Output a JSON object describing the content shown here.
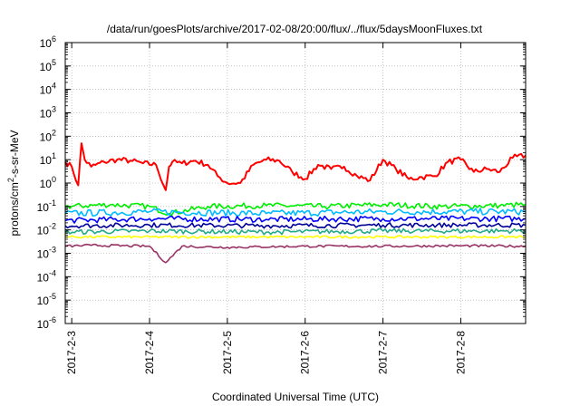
{
  "chart_data": {
    "type": "line",
    "title": "/data/run/goesPlots/archive/2017-02-08/20:00/flux/../flux/5daysMoonFluxes.txt",
    "xlabel": "Coordinated Universal Time (UTC)",
    "ylabel_parts": [
      "protons/cm",
      "2",
      "-s-sr-MeV"
    ],
    "x_ticks": [
      "2017-2-3",
      "2017-2-4",
      "2017-2-5",
      "2017-2-6",
      "2017-2-7",
      "2017-2-8"
    ],
    "x_range": [
      "2017-02-02 22:00",
      "2017-02-08 20:00"
    ],
    "y_scale": "log",
    "ylim": [
      1e-06,
      1000000.0
    ],
    "y_ticks": [
      {
        "base": "10",
        "exp": "-6"
      },
      {
        "base": "10",
        "exp": "-5"
      },
      {
        "base": "10",
        "exp": "-4"
      },
      {
        "base": "10",
        "exp": "-3"
      },
      {
        "base": "10",
        "exp": "-2"
      },
      {
        "base": "10",
        "exp": "-1"
      },
      {
        "base": "10",
        "exp": "0"
      },
      {
        "base": "10",
        "exp": "1"
      },
      {
        "base": "10",
        "exp": "2"
      },
      {
        "base": "10",
        "exp": "3"
      },
      {
        "base": "10",
        "exp": "4"
      },
      {
        "base": "10",
        "exp": "5"
      },
      {
        "base": "10",
        "exp": "6"
      }
    ],
    "grid": true,
    "series": [
      {
        "color": "#ff0000",
        "x": [
          "2017-02-02 22:00",
          "2017-02-03 00:00",
          "2017-02-03 02:00",
          "2017-02-03 03:00",
          "2017-02-03 04:00",
          "2017-02-03 06:00",
          "2017-02-03 10:00",
          "2017-02-03 14:00",
          "2017-02-03 18:00",
          "2017-02-03 22:00",
          "2017-02-04 02:00",
          "2017-02-04 05:00",
          "2017-02-04 06:00",
          "2017-02-04 07:00",
          "2017-02-04 10:00",
          "2017-02-04 14:00",
          "2017-02-04 18:00",
          "2017-02-04 21:00",
          "2017-02-05 00:00",
          "2017-02-05 04:00",
          "2017-02-05 08:00",
          "2017-02-05 12:00",
          "2017-02-05 16:00",
          "2017-02-05 20:00",
          "2017-02-06 00:00",
          "2017-02-06 04:00",
          "2017-02-06 08:00",
          "2017-02-06 12:00",
          "2017-02-06 16:00",
          "2017-02-06 20:00",
          "2017-02-07 00:00",
          "2017-02-07 04:00",
          "2017-02-07 08:00",
          "2017-02-07 12:00",
          "2017-02-07 16:00",
          "2017-02-07 20:00",
          "2017-02-08 00:00",
          "2017-02-08 04:00",
          "2017-02-08 08:00",
          "2017-02-08 12:00",
          "2017-02-08 16:00",
          "2017-02-08 20:00"
        ],
        "y": [
          8,
          5,
          0.8,
          50,
          10,
          5,
          8,
          10,
          9,
          7,
          6,
          0.5,
          5,
          8,
          7,
          9,
          6,
          2,
          1,
          1,
          6,
          10,
          9,
          3,
          1.5,
          6,
          4,
          5,
          2,
          1.3,
          10,
          4,
          1.5,
          1.8,
          2,
          8,
          10,
          3,
          4,
          3,
          12,
          15
        ]
      },
      {
        "color": "#00ee00",
        "x": [
          "2017-02-02 22:00",
          "2017-02-03 12:00",
          "2017-02-04 00:00",
          "2017-02-04 06:00",
          "2017-02-04 18:00",
          "2017-02-05 12:00",
          "2017-02-06 06:00",
          "2017-02-07 00:00",
          "2017-02-07 18:00",
          "2017-02-08 12:00",
          "2017-02-08 20:00"
        ],
        "y": [
          0.1,
          0.12,
          0.1,
          0.05,
          0.1,
          0.11,
          0.1,
          0.12,
          0.1,
          0.11,
          0.12
        ]
      },
      {
        "color": "#00bbff",
        "x": [
          "2017-02-02 22:00",
          "2017-02-04 00:00",
          "2017-02-05 12:00",
          "2017-02-07 00:00",
          "2017-02-08 20:00"
        ],
        "y": [
          0.05,
          0.06,
          0.05,
          0.06,
          0.06
        ]
      },
      {
        "color": "#0000ff",
        "x": [
          "2017-02-02 22:00",
          "2017-02-04 00:00",
          "2017-02-05 12:00",
          "2017-02-07 00:00",
          "2017-02-08 20:00"
        ],
        "y": [
          0.025,
          0.03,
          0.028,
          0.03,
          0.03
        ]
      },
      {
        "color": "#000099",
        "x": [
          "2017-02-02 22:00",
          "2017-02-04 00:00",
          "2017-02-05 12:00",
          "2017-02-07 00:00",
          "2017-02-08 20:00"
        ],
        "y": [
          0.015,
          0.016,
          0.015,
          0.016,
          0.016
        ]
      },
      {
        "color": "#22aa88",
        "x": [
          "2017-02-02 22:00",
          "2017-02-04 00:00",
          "2017-02-05 12:00",
          "2017-02-07 00:00",
          "2017-02-08 20:00"
        ],
        "y": [
          0.008,
          0.009,
          0.008,
          0.009,
          0.009
        ]
      },
      {
        "color": "#ffff00",
        "x": [
          "2017-02-02 22:00",
          "2017-02-04 00:00",
          "2017-02-05 12:00",
          "2017-02-07 00:00",
          "2017-02-08 20:00"
        ],
        "y": [
          0.005,
          0.005,
          0.005,
          0.005,
          0.005
        ]
      },
      {
        "color": "#993366",
        "x": [
          "2017-02-02 22:00",
          "2017-02-03 06:00",
          "2017-02-04 00:00",
          "2017-02-04 05:00",
          "2017-02-04 10:00",
          "2017-02-05 00:00",
          "2017-02-06 00:00",
          "2017-02-07 00:00",
          "2017-02-08 00:00",
          "2017-02-08 20:00"
        ],
        "y": [
          0.002,
          0.0022,
          0.002,
          0.0004,
          0.002,
          0.0018,
          0.002,
          0.002,
          0.0021,
          0.002
        ]
      }
    ]
  }
}
